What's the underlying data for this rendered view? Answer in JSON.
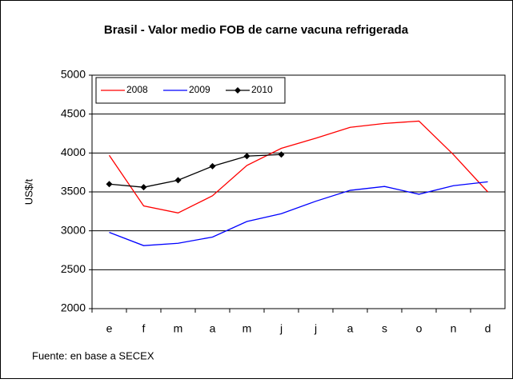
{
  "chart_data": {
    "type": "line",
    "title": "Brasil - Valor medio FOB de carne vacuna refrigerada",
    "y_label": "US$/t",
    "footnote": "Fuente: en base a SECEX",
    "categories": [
      "e",
      "f",
      "m",
      "a",
      "m",
      "j",
      "j",
      "a",
      "s",
      "o",
      "n",
      "d"
    ],
    "series": [
      {
        "name": "2008",
        "color": "#ff0000",
        "values": [
          3970,
          3320,
          3230,
          3450,
          3840,
          4060,
          4190,
          4330,
          4380,
          4410,
          3980,
          3500
        ]
      },
      {
        "name": "2009",
        "color": "#0000ff",
        "values": [
          2980,
          2810,
          2840,
          2920,
          3120,
          3220,
          3380,
          3520,
          3570,
          3470,
          3580,
          3630
        ]
      },
      {
        "name": "2010",
        "color": "#000000",
        "marker": true,
        "values": [
          3600,
          3560,
          3650,
          3830,
          3960,
          3980,
          null,
          null,
          null,
          null,
          null,
          null
        ]
      }
    ],
    "ylim": [
      2000,
      5000
    ],
    "yticks": [
      2000,
      2500,
      3000,
      3500,
      4000,
      4500,
      5000
    ],
    "grid": true
  }
}
